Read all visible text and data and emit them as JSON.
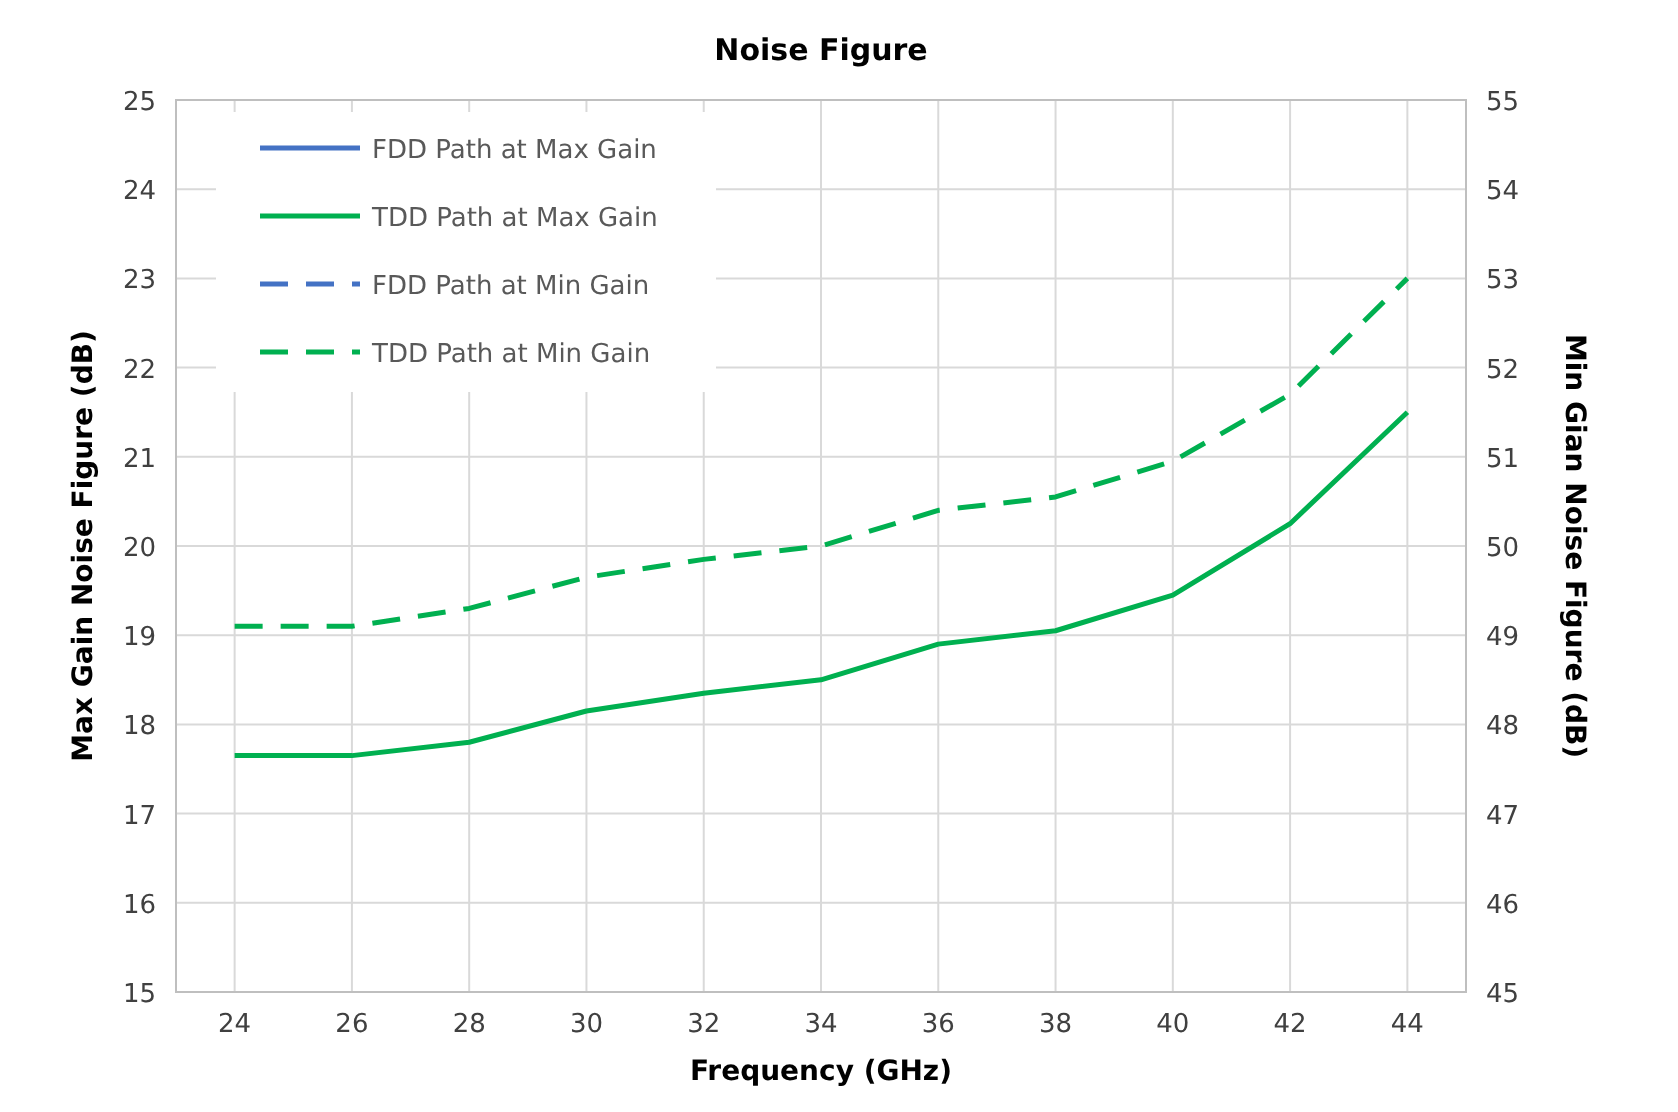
{
  "chart_data": {
    "type": "line",
    "title": "Noise Figure",
    "xlabel": "Frequency (GHz)",
    "ylabel": "Max Gain Noise Figure (dB)",
    "y2label": "Min Gian Noise Figure (dB)",
    "x": [
      24,
      26,
      28,
      30,
      32,
      34,
      36,
      38,
      40,
      42,
      44
    ],
    "xlim": [
      23,
      45
    ],
    "xticks": [
      24,
      26,
      28,
      30,
      32,
      34,
      36,
      38,
      40,
      42,
      44
    ],
    "ylim": [
      15,
      25
    ],
    "yticks": [
      15,
      16,
      17,
      18,
      19,
      20,
      21,
      22,
      23,
      24,
      25
    ],
    "y2lim": [
      45,
      55
    ],
    "y2ticks": [
      45,
      46,
      47,
      48,
      49,
      50,
      51,
      52,
      53,
      54,
      55
    ],
    "grid": true,
    "legend": "top left",
    "marker": "none",
    "series": [
      {
        "name": "FDD Path at Max Gain",
        "color": "#4472c4",
        "line_style": "solid",
        "values": [
          null,
          null,
          null,
          null,
          null,
          null,
          null,
          null,
          null,
          null,
          null
        ]
      },
      {
        "name": "TDD Path at Max Gain",
        "color": "#00b050",
        "line_style": "solid",
        "values": [
          17.65,
          17.65,
          17.8,
          18.15,
          18.35,
          18.5,
          18.9,
          19.05,
          19.45,
          20.25,
          21.5
        ]
      },
      {
        "name": "FDD Path at Min Gain",
        "color": "#4472c4",
        "line_style": "dashed",
        "axis": "y2",
        "values": [
          null,
          null,
          null,
          null,
          null,
          null,
          null,
          null,
          null,
          null,
          null
        ]
      },
      {
        "name": "TDD Path at Min Gain",
        "color": "#00b050",
        "line_style": "dashed",
        "axis": "y2",
        "values": [
          49.1,
          49.1,
          49.3,
          49.65,
          49.85,
          50.0,
          50.4,
          50.55,
          50.95,
          51.7,
          53.0
        ]
      }
    ]
  }
}
